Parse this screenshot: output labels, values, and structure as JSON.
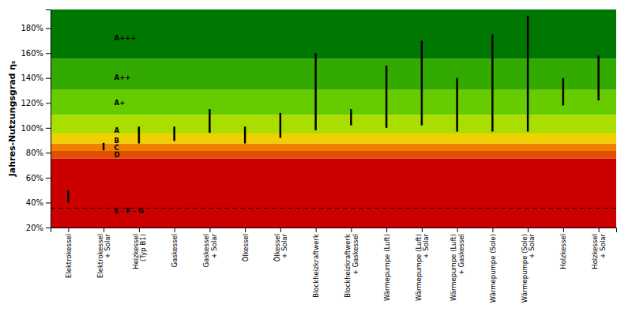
{
  "chart_data": {
    "type": "range_bar",
    "ylabel": "Jahres-Nutzungsgrad ηₛ",
    "categories": [
      "Elektrokessel",
      "Elektrokessel\n+ Solar",
      "Heizkessel\n(Typ B1)",
      "Gaskessel",
      "Gaskessel\n+ Solar",
      "Ölkessel",
      "Ölkessel\n+ Solar",
      "Blockheizkraftwerk",
      "Blockheizkraftwerk\n+ Gaskessel",
      "Wärmepumpe (Luft)",
      "Wärmepumpe (Luft)\n+ Solar",
      "Wärmepumpe (Luft)\n+ Gaskessel",
      "Wärmepumpe (Sole)",
      "Wärmepumpe (Sole)\n+ Solar",
      "Holzkessel",
      "Holzkessel\n+ Solar"
    ],
    "low": [
      0.4,
      0.82,
      0.875,
      0.895,
      0.96,
      0.875,
      0.92,
      0.98,
      1.02,
      1.0,
      1.02,
      0.97,
      0.97,
      0.97,
      1.18,
      1.22
    ],
    "high": [
      0.5,
      0.88,
      1.01,
      1.01,
      1.15,
      1.01,
      1.12,
      1.6,
      1.15,
      1.5,
      1.7,
      1.4,
      1.75,
      1.9,
      1.4,
      1.58
    ],
    "color": "black",
    "ylim": [
      0.2,
      1.95
    ],
    "yticks": [
      {
        "value": 0.2,
        "label": "20%"
      },
      {
        "value": 0.4,
        "label": "40%"
      },
      {
        "value": 0.6,
        "label": "60%"
      },
      {
        "value": 0.8,
        "label": "80%"
      },
      {
        "value": 1.0,
        "label": "100%"
      },
      {
        "value": 1.2,
        "label": "120%"
      },
      {
        "value": 1.4,
        "label": "140%"
      },
      {
        "value": 1.6,
        "label": "160%"
      },
      {
        "value": 1.8,
        "label": "180%"
      }
    ],
    "grid": false,
    "bands": [
      {
        "ymin": 0.2,
        "ymax": 0.755,
        "color": "#cc0000"
      },
      {
        "ymin": 0.755,
        "ymax": 0.815,
        "color": "#e05000"
      },
      {
        "ymin": 0.815,
        "ymax": 0.875,
        "color": "#f08000"
      },
      {
        "ymin": 0.875,
        "ymax": 0.955,
        "color": "#f0d000"
      },
      {
        "ymin": 0.955,
        "ymax": 1.105,
        "color": "#aadd00"
      },
      {
        "ymin": 1.105,
        "ymax": 1.305,
        "color": "#66cc00"
      },
      {
        "ymin": 1.305,
        "ymax": 1.555,
        "color": "#33aa00"
      },
      {
        "ymin": 1.555,
        "ymax": 1.95,
        "color": "#007700"
      }
    ],
    "reference_line": {
      "y": 0.355,
      "color": "black",
      "line_style": "dashed"
    },
    "annotations": [
      {
        "text": "A+++",
        "x": 1.3,
        "y": 1.72
      },
      {
        "text": "A++",
        "x": 1.3,
        "y": 1.4
      },
      {
        "text": "A+",
        "x": 1.3,
        "y": 1.2
      },
      {
        "text": "A",
        "x": 1.3,
        "y": 0.975
      },
      {
        "text": "B",
        "x": 1.3,
        "y": 0.895
      },
      {
        "text": "C",
        "x": 1.3,
        "y": 0.84
      },
      {
        "text": "D",
        "x": 1.3,
        "y": 0.782
      },
      {
        "text": "E - F - G",
        "x": 1.3,
        "y": 0.33
      }
    ]
  }
}
